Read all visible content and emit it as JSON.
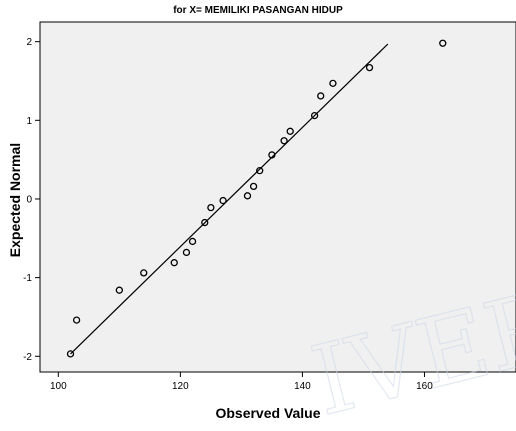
{
  "chart_data": {
    "type": "scatter",
    "title": "for X= MEMILIKI PASANGAN HIDUP",
    "xlabel": "Observed Value",
    "ylabel": "Expected Normal",
    "xlim": [
      97,
      175
    ],
    "ylim": [
      -2.2,
      2.25
    ],
    "x_ticks": [
      100,
      120,
      140,
      160
    ],
    "y_ticks": [
      -2,
      -1,
      0,
      1,
      2
    ],
    "grid": false,
    "plot_background": "#f0f0f0",
    "point_color": "#000000",
    "line_color": "#000000",
    "points": [
      {
        "x": 102,
        "y": -1.97
      },
      {
        "x": 103,
        "y": -1.54
      },
      {
        "x": 110,
        "y": -1.16
      },
      {
        "x": 114,
        "y": -0.94
      },
      {
        "x": 119,
        "y": -0.81
      },
      {
        "x": 121,
        "y": -0.68
      },
      {
        "x": 122,
        "y": -0.54
      },
      {
        "x": 124,
        "y": -0.3
      },
      {
        "x": 125,
        "y": -0.11
      },
      {
        "x": 127,
        "y": -0.02
      },
      {
        "x": 131,
        "y": 0.04
      },
      {
        "x": 132,
        "y": 0.16
      },
      {
        "x": 133,
        "y": 0.36
      },
      {
        "x": 135,
        "y": 0.56
      },
      {
        "x": 137,
        "y": 0.74
      },
      {
        "x": 138,
        "y": 0.86
      },
      {
        "x": 142,
        "y": 1.06
      },
      {
        "x": 143,
        "y": 1.31
      },
      {
        "x": 145,
        "y": 1.47
      },
      {
        "x": 151,
        "y": 1.67
      },
      {
        "x": 163,
        "y": 1.98
      }
    ],
    "reference_line": {
      "x1": 102,
      "y1": -1.97,
      "x2": 154,
      "y2": 1.97
    }
  }
}
